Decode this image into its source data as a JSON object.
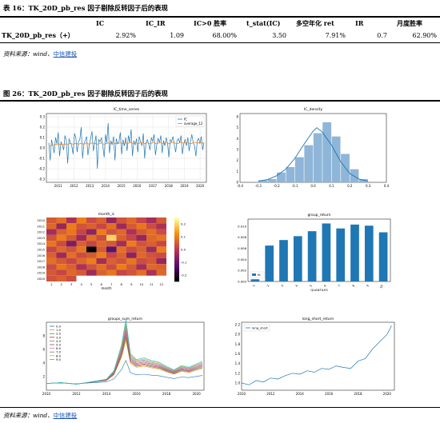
{
  "table": {
    "caption": "表 16：TK_20D_pb_res 因子剔除反转因子后的表现",
    "headers": [
      "IC",
      "IC_IR",
      "IC>0 胜率",
      "t_stat(IC)",
      "多空年化 ret",
      "IR",
      "月度胜率"
    ],
    "row_label": "TK_20D_pb_res（+）",
    "values": [
      "2.92%",
      "1.09",
      "68.00%",
      "3.50",
      "7.91%",
      "0.7",
      "62.90%"
    ]
  },
  "source1": {
    "prefix": "资料来源：wind、",
    "link": "中信建投"
  },
  "figure": {
    "caption": "图 26：TK_20D_pb_res 因子剔除反转因子后的表现"
  },
  "source2": {
    "prefix": "资料来源：wind、",
    "link": "中信建投"
  },
  "colors": {
    "blue": "#1f77b4",
    "orange": "#ff7f0e",
    "bar": "#1f77b4",
    "density": "#8fb6d8"
  },
  "chart_data": [
    {
      "type": "bar+line",
      "title": "IC_time_series",
      "series": [
        {
          "name": "IC"
        },
        {
          "name": "average_12"
        }
      ],
      "ylim": [
        -0.3,
        0.3
      ],
      "yticks": [
        "0.3",
        "0.2",
        "0.1",
        "0.0",
        "-0.1",
        "-0.2",
        "-0.3"
      ],
      "xticks": [
        "2011",
        "2012",
        "2013",
        "2014",
        "2015",
        "2016",
        "2017",
        "2018",
        "2019",
        "2020"
      ],
      "x_range": [
        2010.25,
        2020.4
      ],
      "ic_values": [
        0.05,
        -0.12,
        0.08,
        0.02,
        -0.05,
        0.1,
        0.04,
        0.15,
        -0.08,
        0.06,
        0.03,
        -0.02,
        0.12,
        0.07,
        -0.15,
        0.09,
        0.05,
        0.02,
        -0.06,
        0.14,
        0.1,
        -0.04,
        0.06,
        0.08,
        0.2,
        -0.1,
        0.04,
        0.07,
        0.11,
        -0.07,
        0.03,
        0.09,
        0.16,
        -0.03,
        0.05,
        0.12,
        -0.2,
        0.08,
        0.06,
        0.1,
        0.02,
        -0.09,
        0.13,
        0.05,
        0.24,
        -0.05,
        0.07,
        0.03,
        0.11,
        -0.12,
        0.09,
        0.04,
        0.06,
        0.15,
        -0.06,
        0.08,
        0.02,
        0.1,
        -0.03,
        0.12,
        0.05,
        0.18,
        -0.08,
        0.07,
        0.03,
        0.09,
        -0.04,
        0.11,
        0.06,
        0.02,
        0.14,
        -0.1,
        0.05,
        0.08,
        0.04,
        -0.02,
        0.1,
        0.06,
        0.13,
        -0.07,
        0.03,
        0.09,
        0.05,
        0.12,
        -0.05,
        0.07,
        0.02,
        0.1,
        0.04,
        -0.09,
        0.08,
        0.06,
        0.11,
        0.03,
        -0.04,
        0.07,
        0.09,
        0.05,
        0.12,
        -0.06,
        0.04,
        0.08,
        0.02,
        0.1,
        -0.03,
        0.06,
        0.13,
        0.05,
        0.02,
        -0.08,
        0.07,
        0.09,
        0.04,
        0.11,
        -0.02,
        0.05
      ],
      "avg_values": [
        0.02,
        0.02,
        0.025,
        0.03,
        0.03,
        0.035,
        0.03,
        0.04,
        0.035,
        0.03,
        0.035,
        0.03,
        0.035,
        0.04,
        0.035,
        0.04,
        0.045,
        0.04,
        0.035,
        0.04,
        0.045,
        0.04,
        0.035,
        0.04,
        0.045,
        0.04,
        0.035,
        0.04,
        0.05,
        0.04,
        0.035,
        0.04,
        0.05,
        0.045,
        0.04,
        0.045,
        0.035,
        0.04,
        0.045,
        0.05,
        0.04,
        0.035,
        0.045,
        0.04,
        0.05,
        0.045,
        0.04,
        0.045,
        0.05,
        0.04,
        0.045,
        0.04,
        0.045,
        0.05,
        0.045,
        0.04,
        0.045,
        0.05,
        0.04,
        0.045,
        0.05,
        0.055,
        0.045,
        0.04,
        0.045,
        0.05,
        0.04,
        0.045,
        0.05,
        0.045,
        0.05,
        0.04,
        0.045,
        0.05,
        0.045,
        0.04,
        0.045,
        0.05,
        0.055,
        0.045,
        0.04,
        0.045,
        0.05,
        0.055,
        0.045,
        0.04,
        0.045,
        0.05,
        0.045,
        0.04,
        0.045,
        0.05,
        0.055,
        0.05,
        0.045,
        0.04,
        0.045,
        0.05,
        0.055,
        0.05,
        0.045,
        0.05,
        0.045,
        0.05,
        0.045,
        0.04,
        0.045,
        0.05,
        0.055,
        0.05,
        0.045,
        0.05,
        0.055,
        0.05,
        0.045,
        0.05
      ]
    },
    {
      "type": "histogram+kde",
      "title": "IC_density",
      "xlim": [
        -0.4,
        0.4
      ],
      "xticks": [
        "-0.4",
        "-0.3",
        "-0.2",
        "-0.1",
        "0.0",
        "0.1",
        "0.2",
        "0.3",
        "0.4"
      ],
      "yticks": [
        "0",
        "1",
        "2",
        "3",
        "4",
        "5",
        "6"
      ],
      "ylim": [
        0,
        6.3
      ],
      "bin_edges": [
        -0.3,
        -0.25,
        -0.2,
        -0.15,
        -0.1,
        -0.05,
        0.0,
        0.05,
        0.1,
        0.15,
        0.2,
        0.25,
        0.3
      ],
      "bin_values": [
        0.2,
        0.3,
        0.9,
        1.4,
        2.3,
        3.4,
        4.5,
        5.5,
        4.2,
        2.6,
        1.2,
        0.3
      ],
      "kde_x": [
        -0.3,
        -0.25,
        -0.2,
        -0.15,
        -0.1,
        -0.05,
        0.0,
        0.02,
        0.05,
        0.1,
        0.15,
        0.2,
        0.25,
        0.3
      ],
      "kde_y": [
        0.1,
        0.25,
        0.6,
        1.2,
        2.2,
        3.5,
        4.7,
        5.0,
        4.6,
        3.4,
        1.9,
        0.8,
        0.3,
        0.1
      ]
    },
    {
      "type": "heatmap",
      "title": "month_ic",
      "xlabel": "month",
      "rows": [
        "2010",
        "2011",
        "2012",
        "2013",
        "2014",
        "2015",
        "2016",
        "2017",
        "2018",
        "2019",
        "2020"
      ],
      "cols": [
        "1",
        "2",
        "3",
        "4",
        "5",
        "6",
        "7",
        "8",
        "9",
        "10",
        "11",
        "12"
      ],
      "colorbar_ticks": [
        "0.2",
        "0.1",
        "0.0",
        "-0.1",
        "-0.2"
      ],
      "vmin": -0.25,
      "vmax": 0.25,
      "values": [
        [
          0.05,
          0.08,
          -0.02,
          0.1,
          0.03,
          0.06,
          -0.05,
          0.04,
          0.07,
          0.02,
          -0.03,
          0.05
        ],
        [
          0.07,
          -0.05,
          0.1,
          0.04,
          0.06,
          0.02,
          0.08,
          -0.04,
          0.05,
          0.09,
          0.03,
          -0.02
        ],
        [
          -0.03,
          0.06,
          0.09,
          0.02,
          -0.06,
          0.1,
          0.04,
          0.07,
          -0.02,
          0.05,
          0.08,
          0.03
        ],
        [
          0.04,
          0.1,
          0.05,
          -0.04,
          0.08,
          0.03,
          0.2,
          0.06,
          0.02,
          -0.05,
          0.07,
          0.09
        ],
        [
          0.09,
          0.03,
          -0.08,
          0.06,
          0.02,
          0.07,
          0.05,
          -0.03,
          0.1,
          0.04,
          0.06,
          0.02
        ],
        [
          0.02,
          0.07,
          0.04,
          0.09,
          -0.25,
          0.05,
          -0.12,
          0.08,
          0.03,
          0.06,
          -0.04,
          0.1
        ],
        [
          0.06,
          -0.04,
          0.08,
          0.03,
          0.05,
          0.1,
          0.02,
          0.06,
          -0.06,
          0.07,
          0.04,
          0.03
        ],
        [
          0.08,
          0.05,
          0.02,
          0.07,
          0.1,
          -0.03,
          0.06,
          0.04,
          0.09,
          0.03,
          0.05,
          -0.05
        ],
        [
          0.03,
          0.09,
          0.06,
          -0.02,
          0.04,
          0.08,
          0.03,
          0.1,
          0.05,
          -0.03,
          0.07,
          0.06
        ],
        [
          0.05,
          0.02,
          0.07,
          0.05,
          -0.04,
          0.06,
          0.09,
          0.02,
          0.04,
          0.08,
          -0.02,
          0.07
        ],
        [
          0.04,
          0.06,
          0.03,
          null,
          null,
          null,
          null,
          null,
          null,
          null,
          null,
          null
        ]
      ]
    },
    {
      "type": "bar",
      "title": "group_return",
      "xlabel": "QUANTILES",
      "series": [
        {
          "name": "tlt"
        }
      ],
      "categories": [
        "1",
        "2",
        "3",
        "4",
        "5",
        "6",
        "7",
        "8",
        "9",
        "10"
      ],
      "values": [
        0.0004,
        0.0065,
        0.0075,
        0.0082,
        0.0091,
        0.0105,
        0.0096,
        0.0103,
        0.0101,
        0.0089
      ],
      "ylim": [
        0,
        0.011
      ],
      "yticks": [
        "0.010",
        "0.008",
        "0.006",
        "0.004",
        "0.002",
        "0.000"
      ]
    },
    {
      "type": "line",
      "title": "groups_sum_return",
      "series_names": [
        "0.0",
        "1.0",
        "2.0",
        "3.0",
        "4.0",
        "5.0",
        "6.0",
        "7.0",
        "8.0",
        "9.0"
      ],
      "series_colors": [
        "#1f77b4",
        "#ff7f0e",
        "#2ca02c",
        "#d62728",
        "#9467bd",
        "#8c564b",
        "#e377c2",
        "#7f7f7f",
        "#bcbd22",
        "#17becf"
      ],
      "x_range": [
        2010,
        2020.5
      ],
      "ylim": [
        0,
        10
      ],
      "yticks": [
        "8",
        "6",
        "4",
        "2"
      ],
      "xticks": [
        "2010",
        "2012",
        "2014",
        "2016",
        "2018",
        "2020"
      ],
      "base_x": [
        2010,
        2011,
        2012,
        2013,
        2014,
        2014.5,
        2015,
        2015.3,
        2015.6,
        2016,
        2016.5,
        2017,
        2017.5,
        2018,
        2018.5,
        2019,
        2019.5,
        2020,
        2020.4
      ],
      "base_y": [
        1.0,
        1.1,
        0.9,
        1.2,
        1.5,
        2.5,
        5.5,
        8.5,
        4.5,
        3.8,
        4.0,
        3.7,
        3.5,
        3.0,
        2.6,
        3.1,
        2.9,
        3.3,
        3.6
      ],
      "multipliers": [
        0.45,
        0.85,
        0.9,
        0.95,
        1.0,
        1.05,
        1.1,
        1.15,
        1.2,
        1.25
      ]
    },
    {
      "type": "line",
      "title": "long_short_return",
      "series": [
        {
          "name": "long_short"
        }
      ],
      "x_range": [
        2010,
        2020.5
      ],
      "ylim": [
        0.85,
        2.25
      ],
      "yticks": [
        "2.2",
        "2.0",
        "1.8",
        "1.6",
        "1.4",
        "1.2",
        "1.0"
      ],
      "xticks": [
        "2010",
        "2012",
        "2014",
        "2016",
        "2018",
        "2020"
      ],
      "x": [
        2010,
        2010.5,
        2011,
        2011.5,
        2012,
        2012.5,
        2013,
        2013.5,
        2014,
        2014.5,
        2015,
        2015.5,
        2016,
        2016.5,
        2017,
        2017.5,
        2018,
        2018.5,
        2019,
        2019.5,
        2020,
        2020.3
      ],
      "y": [
        1.0,
        0.96,
        1.05,
        1.02,
        1.1,
        1.08,
        1.15,
        1.2,
        1.18,
        1.25,
        1.22,
        1.3,
        1.28,
        1.35,
        1.32,
        1.3,
        1.45,
        1.5,
        1.7,
        1.85,
        2.0,
        2.18
      ]
    }
  ]
}
